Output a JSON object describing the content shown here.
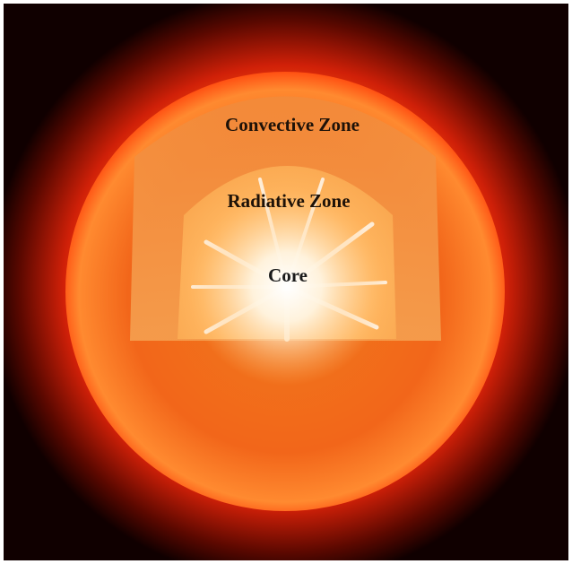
{
  "layers": [
    {
      "label": "Convective Zone"
    },
    {
      "label": "Radiative Zone"
    },
    {
      "label": "Core"
    }
  ]
}
